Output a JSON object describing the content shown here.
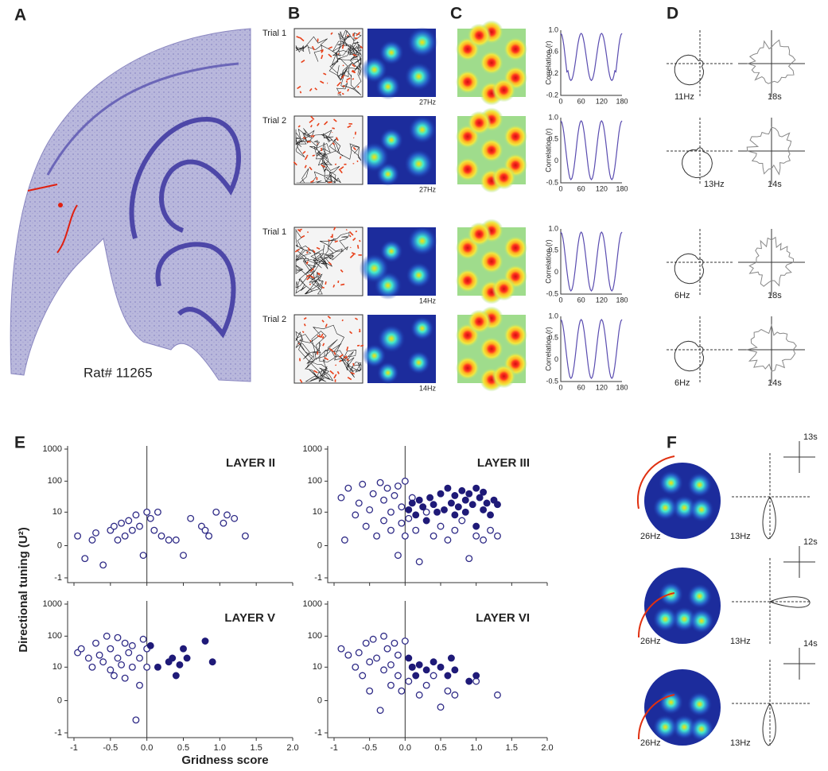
{
  "panel_labels": [
    "A",
    "B",
    "C",
    "D",
    "E",
    "F"
  ],
  "panel_a": {
    "caption": "Rat# 11265"
  },
  "panel_b": {
    "trial_labels": [
      "Trial 1",
      "Trial 2",
      "Trial 1",
      "Trial 2"
    ],
    "peak_rates": [
      "27Hz",
      "27Hz",
      "14Hz",
      "14Hz"
    ]
  },
  "panel_c": {
    "ylabel": "Correlation (r)",
    "yticks": [
      [
        "1.0",
        "0.6",
        "0.2",
        "-0.2"
      ],
      [
        "1.0",
        "0.5",
        "0",
        "-0.5"
      ],
      [
        "1.0",
        "0.5",
        "0",
        "-0.5"
      ],
      [
        "1.0",
        "0.5",
        "0",
        "-0.5"
      ]
    ],
    "xticks": [
      "0",
      "60",
      "120",
      "180"
    ]
  },
  "panel_d": {
    "rows": [
      {
        "rate": "11Hz",
        "time": "18s"
      },
      {
        "rate": "13Hz",
        "time": "14s"
      },
      {
        "rate": "6Hz",
        "time": "18s"
      },
      {
        "rate": "6Hz",
        "time": "14s"
      }
    ]
  },
  "panel_e": {
    "ylabel": "Directional tuning (U²)",
    "xlabel": "Gridness score"
  },
  "panel_f": {
    "rows": [
      {
        "rate": "26Hz",
        "head_rate": "13Hz",
        "time": "13s"
      },
      {
        "rate": "26Hz",
        "head_rate": "13Hz",
        "time": "12s"
      },
      {
        "rate": "26Hz",
        "head_rate": "13Hz",
        "time": "14s"
      }
    ]
  },
  "chart_data": [
    {
      "type": "scatter",
      "title": "LAYER II",
      "xlim": [
        -1,
        2
      ],
      "ylim": [
        -1,
        1000
      ],
      "yscale": "symlog",
      "xticks": [
        -1,
        -0.5,
        0,
        0.5,
        1,
        1.5,
        2
      ],
      "yticks": [
        1000,
        100,
        10,
        0,
        -1
      ],
      "series": [
        {
          "color": "#2e2a86",
          "filled": false,
          "x": [
            -0.95,
            -0.85,
            -0.75,
            -0.7,
            -0.6,
            -0.5,
            -0.45,
            -0.4,
            -0.35,
            -0.3,
            -0.25,
            -0.2,
            -0.15,
            -0.1,
            -0.05,
            0,
            0.05,
            0.1,
            0.15,
            0.2,
            0.3,
            0.4,
            0.5,
            0.6,
            0.75,
            0.8,
            0.85,
            0.95,
            1.05,
            1.1,
            1.2,
            1.35
          ],
          "values": [
            1,
            -0.4,
            0.5,
            1.5,
            -0.6,
            2,
            3,
            0.5,
            4,
            1,
            5,
            2,
            8,
            3,
            -0.3,
            10,
            6,
            2,
            10,
            1,
            0.5,
            0.5,
            -0.3,
            6,
            3,
            2,
            1,
            10,
            4,
            8,
            6,
            1
          ]
        }
      ]
    },
    {
      "type": "scatter",
      "title": "LAYER III",
      "xlim": [
        -1,
        2
      ],
      "ylim": [
        -1,
        1000
      ],
      "yscale": "symlog",
      "xticks": [
        -1,
        -0.5,
        0,
        0.5,
        1,
        1.5,
        2
      ],
      "yticks": [
        1000,
        100,
        10,
        0,
        -1
      ],
      "series": [
        {
          "color": "#2e2a86",
          "filled": false,
          "x": [
            -0.9,
            -0.85,
            -0.8,
            -0.7,
            -0.65,
            -0.6,
            -0.55,
            -0.5,
            -0.45,
            -0.4,
            -0.35,
            -0.3,
            -0.3,
            -0.25,
            -0.2,
            -0.2,
            -0.15,
            -0.1,
            -0.1,
            -0.05,
            -0.05,
            0,
            0,
            0.05,
            0.1,
            0.15,
            0.2,
            0.3,
            0.4,
            0.5,
            0.6,
            0.7,
            0.8,
            0.9,
            1.0,
            1.1,
            1.2,
            1.3
          ],
          "values": [
            30,
            0.5,
            60,
            8,
            20,
            80,
            3,
            12,
            40,
            1,
            90,
            25,
            5,
            60,
            10,
            2,
            35,
            70,
            -0.3,
            15,
            4,
            100,
            1,
            6,
            30,
            2,
            -0.5,
            10,
            1,
            3,
            0.5,
            2,
            5,
            -0.4,
            1,
            0.5,
            2,
            1
          ]
        },
        {
          "color": "#1f1a78",
          "filled": true,
          "x": [
            0.05,
            0.1,
            0.15,
            0.2,
            0.25,
            0.3,
            0.35,
            0.4,
            0.45,
            0.5,
            0.55,
            0.6,
            0.65,
            0.7,
            0.7,
            0.75,
            0.8,
            0.85,
            0.85,
            0.9,
            0.95,
            1.0,
            1.0,
            1.05,
            1.1,
            1.1,
            1.15,
            1.2,
            1.25,
            1.3
          ],
          "values": [
            12,
            20,
            8,
            25,
            15,
            5,
            30,
            18,
            10,
            40,
            12,
            60,
            20,
            8,
            35,
            15,
            50,
            25,
            10,
            40,
            18,
            60,
            3,
            30,
            12,
            45,
            20,
            8,
            25,
            18
          ]
        }
      ]
    },
    {
      "type": "scatter",
      "title": "LAYER V",
      "xlim": [
        -1,
        2
      ],
      "ylim": [
        -1,
        1000
      ],
      "yscale": "symlog",
      "xticks": [
        -1,
        -0.5,
        {
          "value": 0,
          "label": "0.0"
        },
        0.5,
        {
          "value": 1,
          "label": "1.0"
        },
        1.5,
        {
          "value": 2,
          "label": "2.0"
        }
      ],
      "yticks": [
        1000,
        100,
        10,
        0,
        -1
      ],
      "series": [
        {
          "color": "#2e2a86",
          "filled": false,
          "x": [
            -0.95,
            -0.9,
            -0.8,
            -0.75,
            -0.7,
            -0.65,
            -0.6,
            -0.55,
            -0.5,
            -0.5,
            -0.45,
            -0.4,
            -0.4,
            -0.35,
            -0.3,
            -0.3,
            -0.25,
            -0.2,
            -0.2,
            -0.15,
            -0.1,
            -0.1,
            -0.05,
            0,
            0
          ],
          "values": [
            30,
            40,
            20,
            10,
            60,
            25,
            15,
            100,
            8,
            40,
            5,
            90,
            20,
            12,
            60,
            4,
            30,
            10,
            50,
            -0.6,
            20,
            2,
            80,
            10,
            40
          ]
        },
        {
          "color": "#1f1a78",
          "filled": true,
          "x": [
            0.05,
            0.15,
            0.3,
            0.35,
            0.4,
            0.45,
            0.5,
            0.55,
            0.8,
            0.9
          ],
          "values": [
            50,
            10,
            15,
            20,
            5,
            12,
            40,
            20,
            70,
            15
          ]
        }
      ]
    },
    {
      "type": "scatter",
      "title": "LAYER VI",
      "xlim": [
        -1,
        2
      ],
      "ylim": [
        -1,
        1000
      ],
      "yscale": "symlog",
      "xticks": [
        -1,
        -0.5,
        {
          "value": 0,
          "label": "0.0"
        },
        0.5,
        {
          "value": 1,
          "label": "1.0"
        },
        1.5,
        {
          "value": 2,
          "label": "2.0"
        }
      ],
      "yticks": [
        1000,
        100,
        10,
        0,
        -1
      ],
      "series": [
        {
          "color": "#2e2a86",
          "filled": false,
          "x": [
            -0.9,
            -0.8,
            -0.7,
            -0.65,
            -0.6,
            -0.55,
            -0.5,
            -0.5,
            -0.45,
            -0.4,
            -0.35,
            -0.3,
            -0.3,
            -0.25,
            -0.2,
            -0.2,
            -0.15,
            -0.1,
            -0.1,
            -0.05,
            0,
            0.05,
            0.1,
            0.2,
            0.3,
            0.4,
            0.5,
            0.6,
            0.7,
            1.0,
            1.3
          ],
          "values": [
            40,
            25,
            10,
            30,
            5,
            60,
            15,
            1,
            80,
            20,
            -0.3,
            100,
            8,
            40,
            2,
            12,
            60,
            5,
            25,
            1,
            70,
            3,
            10,
            0.5,
            2,
            5,
            -0.2,
            1,
            0.5,
            3,
            0.5
          ]
        },
        {
          "color": "#1f1a78",
          "filled": true,
          "x": [
            0.05,
            0.1,
            0.15,
            0.2,
            0.3,
            0.4,
            0.5,
            0.6,
            0.65,
            0.7,
            0.9,
            1.0
          ],
          "values": [
            20,
            10,
            5,
            12,
            8,
            15,
            10,
            5,
            20,
            8,
            3,
            5
          ]
        }
      ]
    }
  ]
}
